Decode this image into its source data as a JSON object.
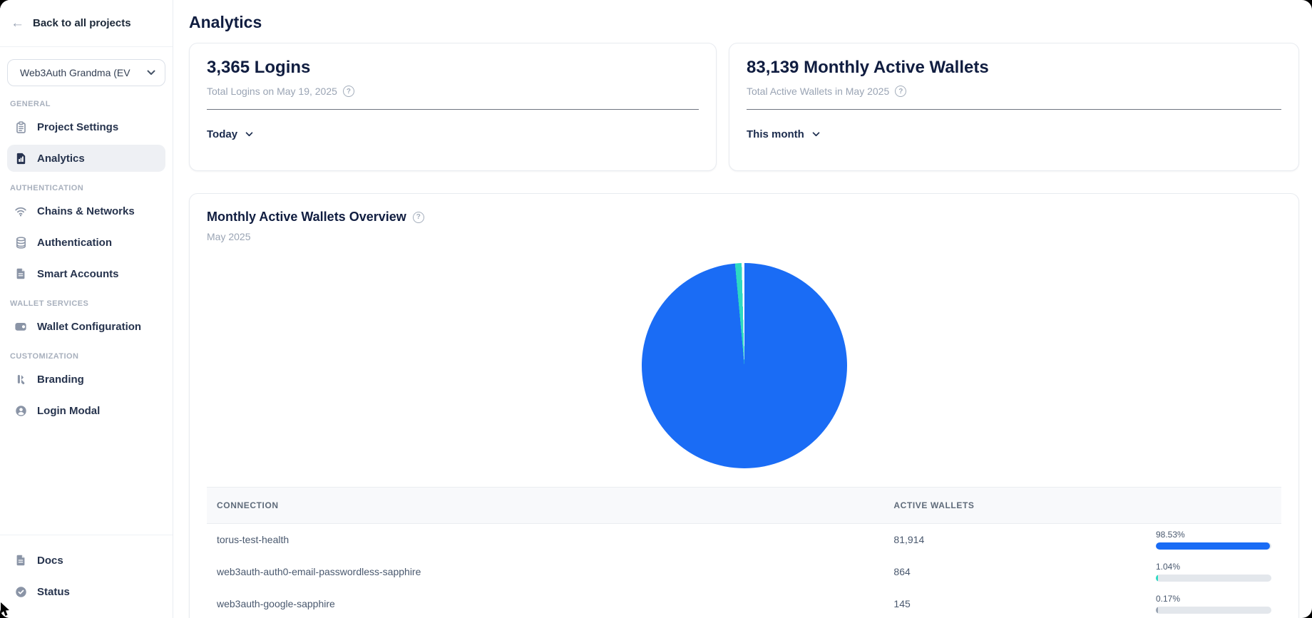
{
  "colors": {
    "primary_blue": "#1a6cf5",
    "teal": "#2dd9c2",
    "track_gray": "#e3e7ec",
    "icon_gray": "#8a94a6"
  },
  "sidebar": {
    "back_label": "Back to all projects",
    "project_selector": "Web3Auth Grandma (EV",
    "sections": [
      {
        "label": "GENERAL",
        "items": [
          {
            "icon": "project-settings",
            "label": "Project Settings",
            "active": false
          },
          {
            "icon": "analytics",
            "label": "Analytics",
            "active": true
          }
        ]
      },
      {
        "label": "AUTHENTICATION",
        "items": [
          {
            "icon": "chains-networks",
            "label": "Chains & Networks",
            "active": false
          },
          {
            "icon": "authentication",
            "label": "Authentication",
            "active": false
          },
          {
            "icon": "smart-accounts",
            "label": "Smart Accounts",
            "active": false
          }
        ]
      },
      {
        "label": "WALLET SERVICES",
        "items": [
          {
            "icon": "wallet-configuration",
            "label": "Wallet Configuration",
            "active": false
          }
        ]
      },
      {
        "label": "CUSTOMIZATION",
        "items": [
          {
            "icon": "branding",
            "label": "Branding",
            "active": false
          },
          {
            "icon": "login-modal",
            "label": "Login Modal",
            "active": false
          }
        ]
      }
    ],
    "footer_items": [
      {
        "icon": "docs",
        "label": "Docs"
      },
      {
        "icon": "status",
        "label": "Status"
      }
    ]
  },
  "header": {
    "title": "Analytics"
  },
  "stat_cards": [
    {
      "title": "3,365 Logins",
      "subtitle": "Total Logins on May 19, 2025",
      "range_label": "Today"
    },
    {
      "title": "83,139 Monthly Active Wallets",
      "subtitle": "Total Active Wallets in May 2025",
      "range_label": "This month"
    }
  ],
  "chart_card": {
    "title": "Monthly Active Wallets Overview",
    "subtitle": "May 2025"
  },
  "chart_data": {
    "type": "pie",
    "title": "Monthly Active Wallets Overview",
    "period": "May 2025",
    "total_label": "83,139 Monthly Active Wallets",
    "slices": [
      {
        "label": "torus-test-health",
        "value": 81914,
        "percent": 98.53,
        "color": "#1a6cf5"
      },
      {
        "label": "web3auth-auth0-email-passwordless-sapphire",
        "value": 864,
        "percent": 1.04,
        "color": "#2dd9c2"
      },
      {
        "label": "web3auth-google-sapphire",
        "value": 145,
        "percent": 0.17,
        "color": "#ffffff"
      }
    ],
    "legend": "none",
    "remainder_color": "#ffffff"
  },
  "table": {
    "columns": [
      "CONNECTION",
      "ACTIVE WALLETS",
      ""
    ],
    "rows": [
      {
        "connection": "torus-test-health",
        "active_wallets": "81,914",
        "percent_label": "98.53%",
        "percent": 98.53,
        "bar_color": "#1a6cf5"
      },
      {
        "connection": "web3auth-auth0-email-passwordless-sapphire",
        "active_wallets": "864",
        "percent_label": "1.04%",
        "percent": 1.04,
        "bar_color": "#2dd9c2"
      },
      {
        "connection": "web3auth-google-sapphire",
        "active_wallets": "145",
        "percent_label": "0.17%",
        "percent": 0.17,
        "bar_color": "#9aa4b2"
      }
    ]
  }
}
